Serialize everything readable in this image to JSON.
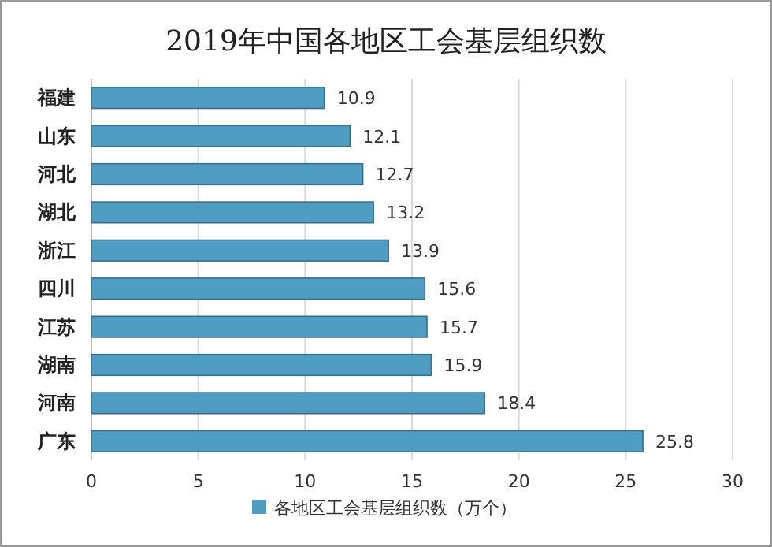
{
  "chart_data": {
    "type": "bar",
    "orientation": "horizontal",
    "title": "2019年中国各地区工会基层组织数",
    "categories": [
      "福建",
      "山东",
      "河北",
      "湖北",
      "浙江",
      "四川",
      "江苏",
      "湖南",
      "河南",
      "广东"
    ],
    "series": [
      {
        "name": "各地区工会基层组织数（万个）",
        "color": "#4f9dc2",
        "values": [
          10.9,
          12.1,
          12.7,
          13.2,
          13.9,
          15.6,
          15.7,
          15.9,
          18.4,
          25.8
        ]
      }
    ],
    "xlim": [
      0,
      30
    ],
    "xticks": [
      0,
      5,
      10,
      15,
      20,
      25,
      30
    ],
    "grid": "x",
    "legend": "bottom",
    "data_labels": true
  }
}
